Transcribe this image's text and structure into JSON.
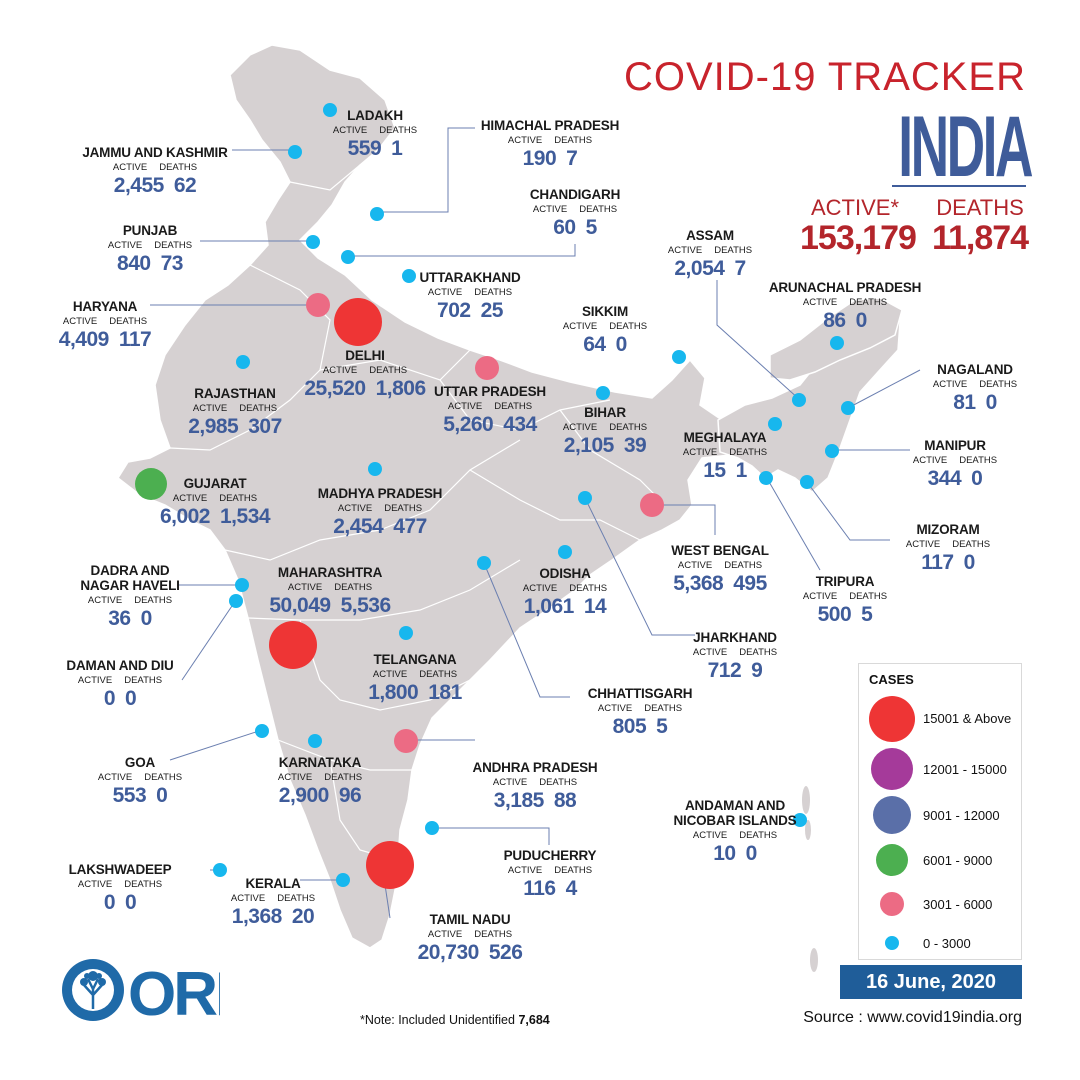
{
  "header": {
    "title": "COVID-19 TRACKER",
    "country": "INDIA"
  },
  "national": {
    "active_label": "ACTIVE*",
    "deaths_label": "DEATHS",
    "active": "153,179",
    "deaths": "11,874"
  },
  "col_labels": {
    "active": "ACTIVE",
    "deaths": "DEATHS"
  },
  "states": [
    {
      "name": "LADAKH",
      "active": "559",
      "deaths": "1",
      "category": "0 - 3000"
    },
    {
      "name": "JAMMU AND KASHMIR",
      "active": "2,455",
      "deaths": "62",
      "category": "0 - 3000"
    },
    {
      "name": "HIMACHAL PRADESH",
      "active": "190",
      "deaths": "7",
      "category": "0 - 3000"
    },
    {
      "name": "CHANDIGARH",
      "active": "60",
      "deaths": "5",
      "category": "0 - 3000"
    },
    {
      "name": "PUNJAB",
      "active": "840",
      "deaths": "73",
      "category": "0 - 3000"
    },
    {
      "name": "UTTARAKHAND",
      "active": "702",
      "deaths": "25",
      "category": "0 - 3000"
    },
    {
      "name": "HARYANA",
      "active": "4,409",
      "deaths": "117",
      "category": "3001 - 6000"
    },
    {
      "name": "DELHI",
      "active": "25,520",
      "deaths": "1,806",
      "category": "15001 & Above"
    },
    {
      "name": "RAJASTHAN",
      "active": "2,985",
      "deaths": "307",
      "category": "0 - 3000"
    },
    {
      "name": "UTTAR PRADESH",
      "active": "5,260",
      "deaths": "434",
      "category": "3001 - 6000"
    },
    {
      "name": "BIHAR",
      "active": "2,105",
      "deaths": "39",
      "category": "0 - 3000"
    },
    {
      "name": "SIKKIM",
      "active": "64",
      "deaths": "0",
      "category": "0 - 3000"
    },
    {
      "name": "ASSAM",
      "active": "2,054",
      "deaths": "7",
      "category": "0 - 3000"
    },
    {
      "name": "ARUNACHAL PRADESH",
      "active": "86",
      "deaths": "0",
      "category": "0 - 3000"
    },
    {
      "name": "NAGALAND",
      "active": "81",
      "deaths": "0",
      "category": "0 - 3000"
    },
    {
      "name": "MEGHALAYA",
      "active": "15",
      "deaths": "1",
      "category": "0 - 3000"
    },
    {
      "name": "MANIPUR",
      "active": "344",
      "deaths": "0",
      "category": "0 - 3000"
    },
    {
      "name": "MIZORAM",
      "active": "117",
      "deaths": "0",
      "category": "0 - 3000"
    },
    {
      "name": "TRIPURA",
      "active": "500",
      "deaths": "5",
      "category": "0 - 3000"
    },
    {
      "name": "GUJARAT",
      "active": "6,002",
      "deaths": "1,534",
      "category": "6001 - 9000"
    },
    {
      "name": "MADHYA PRADESH",
      "active": "2,454",
      "deaths": "477",
      "category": "0 - 3000"
    },
    {
      "name": "WEST BENGAL",
      "active": "5,368",
      "deaths": "495",
      "category": "3001 - 6000"
    },
    {
      "name": "DADRA AND NAGAR HAVELI",
      "active": "36",
      "deaths": "0",
      "category": "0 - 3000"
    },
    {
      "name": "MAHARASHTRA",
      "active": "50,049",
      "deaths": "5,536",
      "category": "15001 & Above"
    },
    {
      "name": "ODISHA",
      "active": "1,061",
      "deaths": "14",
      "category": "0 - 3000"
    },
    {
      "name": "JHARKHAND",
      "active": "712",
      "deaths": "9",
      "category": "0 - 3000"
    },
    {
      "name": "DAMAN AND DIU",
      "active": "0",
      "deaths": "0",
      "category": "0 - 3000"
    },
    {
      "name": "TELANGANA",
      "active": "1,800",
      "deaths": "181",
      "category": "0 - 3000"
    },
    {
      "name": "CHHATTISGARH",
      "active": "805",
      "deaths": "5",
      "category": "0 - 3000"
    },
    {
      "name": "GOA",
      "active": "553",
      "deaths": "0",
      "category": "0 - 3000"
    },
    {
      "name": "KARNATAKA",
      "active": "2,900",
      "deaths": "96",
      "category": "0 - 3000"
    },
    {
      "name": "ANDHRA PRADESH",
      "active": "3,185",
      "deaths": "88",
      "category": "3001 - 6000"
    },
    {
      "name": "ANDAMAN AND NICOBAR ISLANDS",
      "active": "10",
      "deaths": "0",
      "category": "0 - 3000"
    },
    {
      "name": "PUDUCHERRY",
      "active": "116",
      "deaths": "4",
      "category": "0 - 3000"
    },
    {
      "name": "LAKSHWADEEP",
      "active": "0",
      "deaths": "0",
      "category": "0 - 3000"
    },
    {
      "name": "KERALA",
      "active": "1,368",
      "deaths": "20",
      "category": "0 - 3000"
    },
    {
      "name": "TAMIL NADU",
      "active": "20,730",
      "deaths": "526",
      "category": "15001 & Above"
    }
  ],
  "legend": {
    "title": "CASES",
    "items": [
      {
        "label": "15001 & Above",
        "color": "#ee3535"
      },
      {
        "label": "12001 - 15000",
        "color": "#a53a9a"
      },
      {
        "label": "9001 - 12000",
        "color": "#5a6fa8"
      },
      {
        "label": "6001 - 9000",
        "color": "#4caf50"
      },
      {
        "label": "3001 - 6000",
        "color": "#ec6b84"
      },
      {
        "label": "0 - 3000",
        "color": "#17b7ee"
      }
    ]
  },
  "footer": {
    "date": "16 June, 2020",
    "source": "Source : www.covid19india.org",
    "note_prefix": "*Note: Included Unidentified ",
    "note_value": "7,684",
    "logo_text": "ORF"
  }
}
